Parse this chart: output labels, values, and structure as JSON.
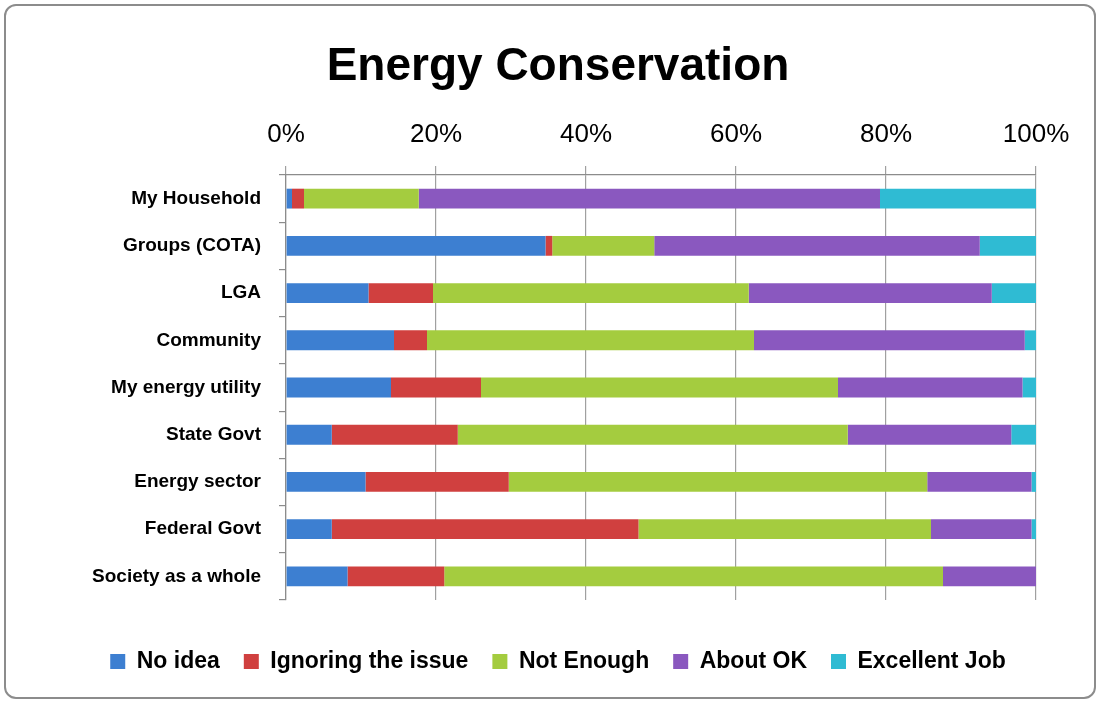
{
  "chart_data": {
    "type": "bar",
    "title": "Energy Conservation",
    "orientation": "horizontal",
    "stacked": true,
    "categories": [
      "My Household",
      "Groups (COTA)",
      "LGA",
      "Community",
      "My energy utility",
      "State Govt",
      "Energy sector",
      "Federal Govt",
      "Society as a whole"
    ],
    "series": [
      {
        "name": "No idea",
        "color": "#3d7fd1",
        "values": [
          0.8,
          34.6,
          11.0,
          14.4,
          14.0,
          6.1,
          10.6,
          6.1,
          8.2
        ]
      },
      {
        "name": "Ignoring the issue",
        "color": "#d0403f",
        "values": [
          1.6,
          0.9,
          8.6,
          4.4,
          12.0,
          16.8,
          19.1,
          40.9,
          12.9
        ]
      },
      {
        "name": "Not Enough",
        "color": "#a4cc3f",
        "values": [
          15.3,
          13.6,
          42.1,
          43.6,
          47.6,
          52.0,
          55.8,
          39.0,
          66.5
        ]
      },
      {
        "name": "About OK",
        "color": "#8a58bf",
        "values": [
          61.5,
          43.4,
          32.4,
          36.1,
          24.6,
          21.8,
          13.9,
          13.4,
          12.4
        ]
      },
      {
        "name": "Excellent Job",
        "color": "#2fbbd3",
        "values": [
          20.8,
          7.5,
          5.9,
          1.5,
          1.8,
          3.3,
          0.6,
          0.6,
          0
        ]
      }
    ],
    "xlim": [
      0,
      100
    ],
    "xticks": [
      {
        "value": 0,
        "label": "0%"
      },
      {
        "value": 20,
        "label": "20%"
      },
      {
        "value": 40,
        "label": "40%"
      },
      {
        "value": 60,
        "label": "60%"
      },
      {
        "value": 80,
        "label": "80%"
      },
      {
        "value": 100,
        "label": "100%"
      }
    ],
    "grid": "x",
    "legend": "bottom"
  }
}
